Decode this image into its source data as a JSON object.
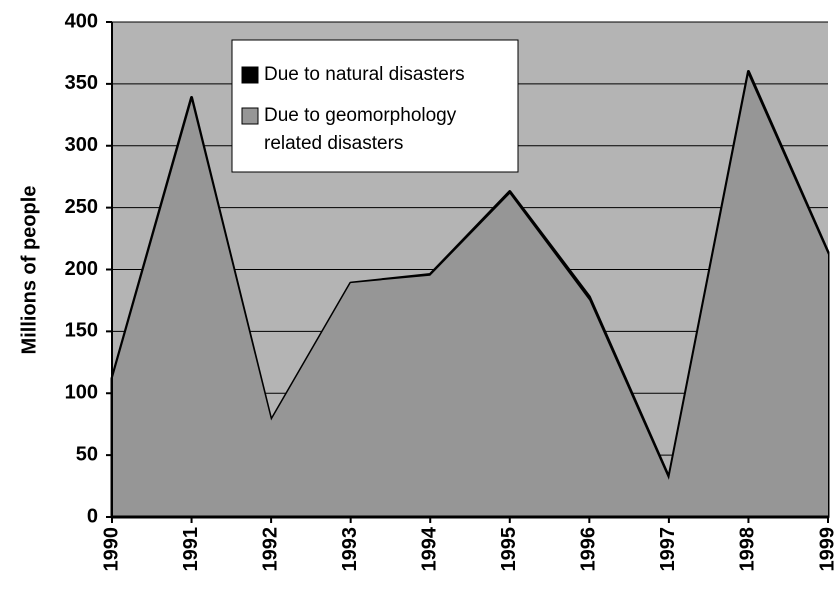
{
  "chart_data": {
    "type": "area",
    "y_label": "Millions of people",
    "categories": [
      "1990",
      "1991",
      "1992",
      "1993",
      "1994",
      "1995",
      "1996",
      "1997",
      "1998",
      "1999"
    ],
    "series": [
      {
        "name": "Due to natural disasters",
        "color": "#000000",
        "values": [
          112,
          339,
          78,
          189,
          196,
          263,
          178,
          32,
          360,
          214
        ]
      },
      {
        "name": [
          "Due to geomorphology",
          "related disasters"
        ],
        "color": "#969696",
        "values": [
          110,
          336,
          78,
          189,
          195,
          261,
          175,
          30,
          357,
          212
        ]
      }
    ],
    "ylim": [
      0,
      400
    ],
    "yticks": [
      0,
      50,
      100,
      150,
      200,
      250,
      300,
      350,
      400
    ],
    "grid": true,
    "plot_background": "#b4b4b4",
    "legend": "upper left"
  }
}
